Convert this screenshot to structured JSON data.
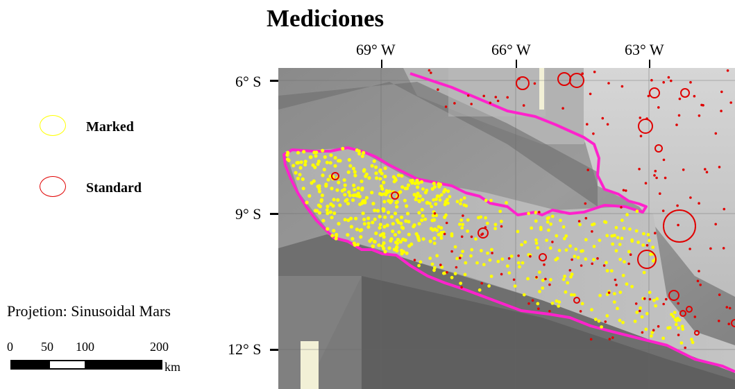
{
  "title": "Mediciones",
  "lon_labels": [
    "69° W",
    "66° W",
    "63° W"
  ],
  "lat_labels": [
    "6° S",
    "9° S",
    "12° S"
  ],
  "legend": [
    {
      "label": "Marked",
      "color": "#ffff00"
    },
    {
      "label": "Standard",
      "color": "#e00000"
    }
  ],
  "projection_text": "Projetion: Sinusoidal Mars",
  "scalebar": {
    "labels": [
      "0",
      "50",
      "100",
      "200"
    ],
    "unit": "km"
  },
  "colors": {
    "boundary": "#ff22cc",
    "marked": "#ffff00",
    "standard": "#e00000"
  }
}
